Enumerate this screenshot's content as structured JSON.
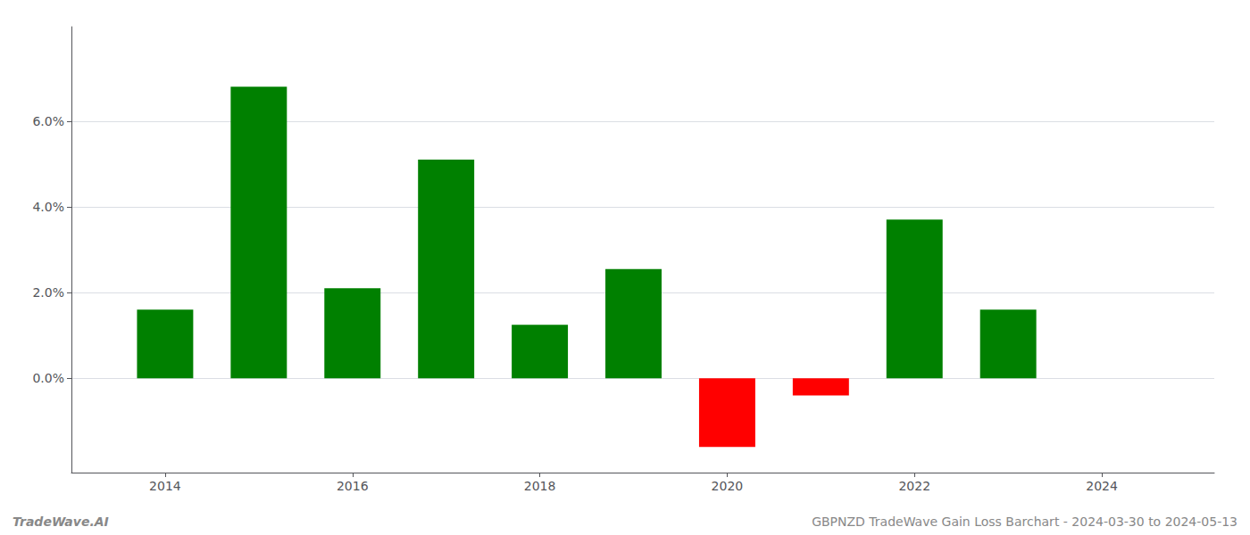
{
  "chart_data": {
    "type": "bar",
    "x": [
      2014,
      2015,
      2016,
      2017,
      2018,
      2019,
      2020,
      2021,
      2022,
      2023
    ],
    "values": [
      0.016,
      0.068,
      0.021,
      0.051,
      0.0125,
      0.0255,
      -0.016,
      -0.004,
      0.037,
      0.016
    ],
    "colors": [
      "#008000",
      "#008000",
      "#008000",
      "#008000",
      "#008000",
      "#008000",
      "#ff0000",
      "#ff0000",
      "#008000",
      "#008000"
    ],
    "xlim": [
      2013.0,
      2025.2
    ],
    "xticks": [
      2014,
      2016,
      2018,
      2020,
      2022,
      2024
    ],
    "ylim": [
      -0.022,
      0.082
    ],
    "yticks": [
      {
        "value": 0.0,
        "label": "0.0%"
      },
      {
        "value": 0.02,
        "label": "2.0%"
      },
      {
        "value": 0.04,
        "label": "4.0%"
      },
      {
        "value": 0.06,
        "label": "6.0%"
      }
    ],
    "grid": true,
    "annotations": [
      "TradeWave.AI",
      "GBPNZD TradeWave Gain Loss Barchart - 2024-03-30 to 2024-05-13"
    ]
  }
}
